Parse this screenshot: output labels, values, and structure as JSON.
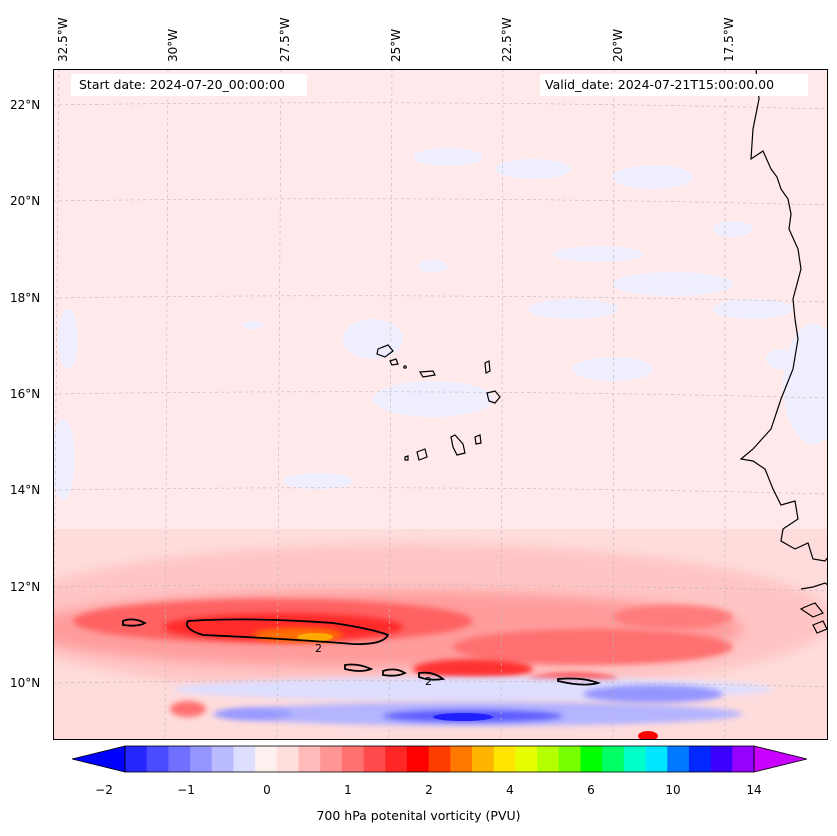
{
  "map": {
    "start_date_text": "Start date: 2024-07-20_00:00:00",
    "valid_date_text": "Valid_date: 2024-07-21T15:00:00.00",
    "lon_labels": [
      "32.5°W",
      "30°W",
      "27.5°W",
      "25°W",
      "22.5°W",
      "20°W",
      "17.5°W"
    ],
    "lat_labels": [
      "22°N",
      "20°N",
      "18°N",
      "16°N",
      "14°N",
      "12°N",
      "10°N"
    ],
    "contour_labels": [
      "2",
      "2"
    ]
  },
  "colorbar": {
    "ticks": [
      "−2",
      "−1",
      "0",
      "1",
      "2",
      "4",
      "6",
      "10",
      "14"
    ],
    "label": "700 hPa potenital vorticity (PVU)",
    "colors": [
      "#0000ff",
      "#2626ff",
      "#4b4bff",
      "#7070ff",
      "#9595ff",
      "#babaff",
      "#dedeff",
      "#fff0f0",
      "#ffdede",
      "#ffbaba",
      "#ff9595",
      "#ff7070",
      "#ff4b4b",
      "#ff2626",
      "#ff0000",
      "#ff3c00",
      "#ff7800",
      "#ffb400",
      "#ffe600",
      "#e6ff00",
      "#b4ff00",
      "#78ff00",
      "#00ff00",
      "#00ff64",
      "#00ffc8",
      "#00e6ff",
      "#0078ff",
      "#0028ff",
      "#3c00ff",
      "#9600ff",
      "#c800ff"
    ]
  }
}
